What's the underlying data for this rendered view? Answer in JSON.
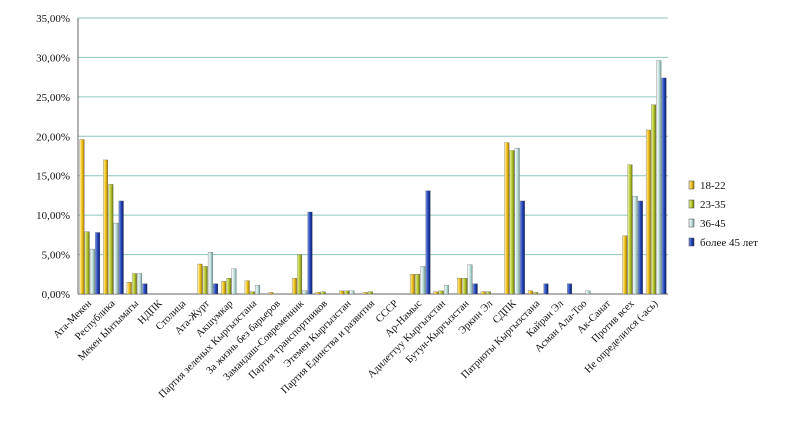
{
  "chart_data": {
    "type": "bar",
    "ylim": [
      0,
      35
    ],
    "y_ticks": [
      "0,00%",
      "5,00%",
      "10,00%",
      "15,00%",
      "20,00%",
      "25,00%",
      "30,00%",
      "35,00%"
    ],
    "grid": true,
    "legend_position": "right",
    "categories": [
      "Ата-Мекен",
      "Республика",
      "Мекен Ынтымагы",
      "НДПК",
      "Столица",
      "Ата-Журт",
      "Акшумкар",
      "Партия зеленых Кыргызстана",
      "За жизнь без барьеров",
      "Замандаш-Современник",
      "Партия транспортников",
      "Этемен Кыргызстан",
      "Партия Единства и развития",
      "СССР",
      "Ар-Намыс",
      "Адилеттуу Кыргызстан",
      "Бутун-Кыргызстан",
      "Эркин Эл",
      "СДПК",
      "Патриоты Кыргызстана",
      "Кайран Эл",
      "Асман Ала-Тоо",
      "Ак-Санат",
      "Против всех",
      "Не определился (-ась)"
    ],
    "series": [
      {
        "name": "18-22",
        "color": "#f2c21b",
        "values": [
          19.6,
          17.0,
          1.5,
          0,
          0,
          3.8,
          1.6,
          1.7,
          0.2,
          2.0,
          0.2,
          0.4,
          0.2,
          0,
          2.5,
          0.3,
          2.0,
          0.3,
          19.2,
          0.4,
          0,
          0,
          0,
          7.4,
          20.8
        ]
      },
      {
        "name": "23-35",
        "color": "#b8c92e",
        "values": [
          7.9,
          13.9,
          2.6,
          0,
          0,
          3.5,
          2.0,
          0.3,
          0,
          5.0,
          0.3,
          0.4,
          0.3,
          0,
          2.5,
          0.4,
          2.0,
          0.3,
          18.2,
          0.2,
          0,
          0,
          0,
          16.4,
          24.0
        ]
      },
      {
        "name": "36-45",
        "color": "#c8e2e0",
        "values": [
          5.7,
          9.0,
          2.6,
          0,
          0,
          5.3,
          3.2,
          1.1,
          0,
          0.4,
          0,
          0.4,
          0,
          0,
          3.5,
          1.1,
          3.7,
          0,
          18.5,
          0,
          0,
          0.4,
          0,
          12.4,
          29.6
        ]
      },
      {
        "name": "более 45 лет",
        "color": "#1f3ea8",
        "values": [
          7.8,
          11.8,
          1.3,
          0,
          0,
          1.3,
          0,
          0,
          0,
          10.4,
          0,
          0,
          0,
          0,
          13.1,
          0,
          1.3,
          0,
          11.8,
          1.3,
          1.3,
          0,
          0,
          11.8,
          27.4
        ]
      }
    ]
  }
}
